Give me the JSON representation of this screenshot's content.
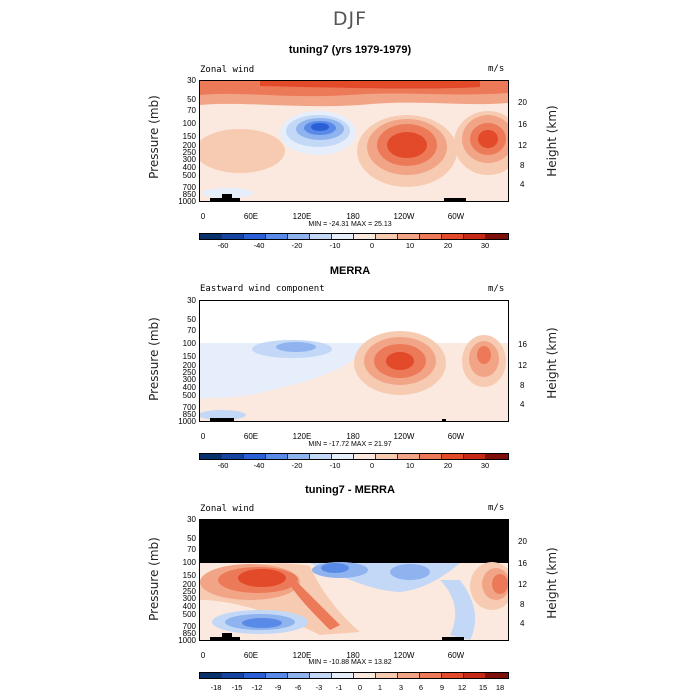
{
  "title": "DJF",
  "colors": {
    "palette_abs": [
      "#08306b",
      "#1642a0",
      "#2a5fd6",
      "#5a8ae8",
      "#8fb3ef",
      "#c2d8f6",
      "#e6eefb",
      "#fbe9df",
      "#f7cbb2",
      "#f2a487",
      "#ec7a58",
      "#e24a2a",
      "#c62a17",
      "#7f0f0a"
    ],
    "palette_diff": [
      "#08306b",
      "#1642a0",
      "#2a5fd6",
      "#5a8ae8",
      "#8fb3ef",
      "#c2d8f6",
      "#e6eefb",
      "#fbe9df",
      "#f7cbb2",
      "#f2a487",
      "#ec7a58",
      "#e24a2a",
      "#c62a17",
      "#7f0f0a"
    ]
  },
  "panels": [
    {
      "id": "model",
      "title": "tuning7 (yrs 1979-1979)",
      "left_label": "Zonal wind",
      "right_label": "m/s",
      "min_max": "MIN = -24.31   MAX =  25.13",
      "colorbar_labels": [
        "-60",
        "-40",
        "-20",
        "-10",
        "0",
        "10",
        "20",
        "30"
      ],
      "masked_above_mb": null
    },
    {
      "id": "obs",
      "title": "MERRA",
      "left_label": "Eastward wind component",
      "right_label": "m/s",
      "min_max": "MIN = -17.72   MAX =  21.97",
      "colorbar_labels": [
        "-60",
        "-40",
        "-20",
        "-10",
        "0",
        "10",
        "20",
        "30"
      ],
      "masked_above_mb": 100
    },
    {
      "id": "diff",
      "title": "tuning7 - MERRA",
      "left_label": "Zonal wind",
      "right_label": "m/s",
      "min_max": "MIN = -10.88   MAX =  13.82",
      "colorbar_labels": [
        "-18",
        "-15",
        "-12",
        "-9",
        "-6",
        "-3",
        "-1",
        "0",
        "1",
        "3",
        "6",
        "9",
        "12",
        "15",
        "18"
      ],
      "masked_above_mb": 100
    }
  ],
  "axes": {
    "ylabel": "Pressure (mb)",
    "y2label": "Height (km)",
    "pressure_ticks": [
      "30",
      "50",
      "70",
      "100",
      "150",
      "200",
      "250",
      "300",
      "400",
      "500",
      "700",
      "850",
      "1000"
    ],
    "height_ticks_full": [
      "20",
      "16",
      "12",
      "8",
      "4"
    ],
    "height_ticks_masked": [
      "16",
      "12",
      "8",
      "4"
    ],
    "x_ticks": [
      "0",
      "60E",
      "120E",
      "180",
      "120W",
      "60W"
    ]
  },
  "chart_data": [
    {
      "type": "heatmap",
      "title": "tuning7 (yrs 1979-1979)",
      "variable": "Zonal wind",
      "units": "m/s",
      "x": [
        "0",
        "60E",
        "120E",
        "180",
        "120W",
        "60W"
      ],
      "y_pressure_mb": [
        30,
        50,
        70,
        100,
        150,
        200,
        250,
        300,
        400,
        500,
        700,
        850,
        1000
      ],
      "min": -24.31,
      "max": 25.13,
      "features": [
        {
          "lon": 160,
          "p_mb": 30,
          "value": 15
        },
        {
          "lon": 110,
          "p_mb": 100,
          "value": -24
        },
        {
          "lon": 205,
          "p_mb": 200,
          "value": 25
        },
        {
          "lon": 290,
          "p_mb": 200,
          "value": 23
        },
        {
          "lon": 20,
          "p_mb": 200,
          "value": 8
        }
      ]
    },
    {
      "type": "heatmap",
      "title": "MERRA",
      "variable": "Eastward wind component",
      "units": "m/s",
      "x": [
        "0",
        "60E",
        "120E",
        "180",
        "120W",
        "60W"
      ],
      "y_pressure_mb": [
        100,
        150,
        200,
        250,
        300,
        400,
        500,
        700,
        850,
        1000
      ],
      "min": -17.72,
      "max": 21.97,
      "features": [
        {
          "lon": 90,
          "p_mb": 150,
          "value": -15
        },
        {
          "lon": 200,
          "p_mb": 200,
          "value": 22
        },
        {
          "lon": 290,
          "p_mb": 200,
          "value": 15
        }
      ]
    },
    {
      "type": "heatmap",
      "title": "tuning7 - MERRA",
      "variable": "Zonal wind",
      "units": "m/s",
      "x": [
        "0",
        "60E",
        "120E",
        "180",
        "120W",
        "60W"
      ],
      "y_pressure_mb": [
        100,
        150,
        200,
        250,
        300,
        400,
        500,
        700,
        850,
        1000
      ],
      "min": -10.88,
      "max": 13.82,
      "features": [
        {
          "lon": 60,
          "p_mb": 200,
          "value": 13
        },
        {
          "lon": 140,
          "p_mb": 120,
          "value": -10
        },
        {
          "lon": 120,
          "p_mb": 500,
          "value": 6
        },
        {
          "lon": 60,
          "p_mb": 800,
          "value": -9
        },
        {
          "lon": 230,
          "p_mb": 150,
          "value": -6
        },
        {
          "lon": 300,
          "p_mb": 200,
          "value": 9
        }
      ]
    }
  ]
}
